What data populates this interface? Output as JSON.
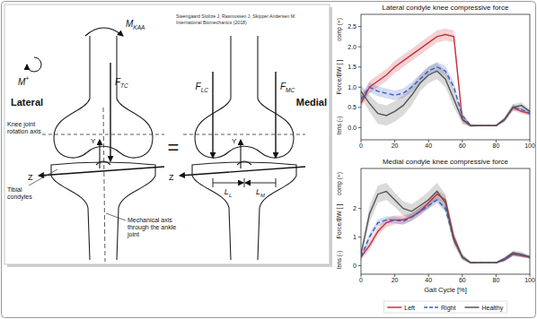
{
  "diagram": {
    "title_left": "Lateral",
    "title_right": "Medial",
    "equals": "=",
    "citation": [
      "Steengaard Stoltze J, Rasmussen J, Skipper Andersen M.",
      "International Biomechanics (2018)"
    ],
    "labels": {
      "moment": {
        "main": "M",
        "sub": "KAA"
      },
      "sign": {
        "main": "M",
        "sup": "+"
      },
      "ftc": {
        "main": "F",
        "sub": "TC"
      },
      "flc": {
        "main": "F",
        "sub": "LC"
      },
      "fmc": {
        "main": "F",
        "sub": "MC"
      },
      "ll": {
        "main": "L",
        "sub": "L"
      },
      "lm": {
        "main": "L",
        "sub": "M"
      },
      "y": "Y",
      "z": "Z",
      "rotation_axis": "Knee joint rotation axis",
      "condyles": "Tibial condyles",
      "mechanical_axis": "Mechanical axis through the ankle joint"
    }
  },
  "chart_data": [
    {
      "type": "line",
      "title": "Lateral condyle knee compressive force",
      "ylabel": "Force/BW [ ]",
      "annotations": [
        {
          "text": "comp (+)"
        },
        {
          "text": "tens (-)"
        }
      ],
      "x": [
        0,
        5,
        10,
        15,
        20,
        25,
        30,
        35,
        40,
        45,
        50,
        55,
        60,
        65,
        70,
        75,
        80,
        85,
        90,
        95,
        100
      ],
      "xlim": [
        0,
        100
      ],
      "xticks": [
        0,
        20,
        40,
        60,
        80,
        100
      ],
      "ylim": [
        -0.3,
        2.8
      ],
      "yticks": [
        {
          "value": 0,
          "label": "0.0"
        },
        {
          "value": 0.5,
          "label": "0.5"
        },
        {
          "value": 1,
          "label": "1.0"
        },
        {
          "value": 1.5,
          "label": "1.5"
        },
        {
          "value": 2,
          "label": "2.0"
        },
        {
          "value": 2.5,
          "label": "2.5"
        }
      ],
      "grid": false,
      "series": [
        {
          "color": "#c8303a",
          "line_style": "solid",
          "values": [
            0.6,
            1.0,
            1.15,
            1.3,
            1.5,
            1.65,
            1.8,
            1.95,
            2.1,
            2.25,
            2.3,
            2.25,
            0.2,
            0.05,
            0.05,
            0.05,
            0.05,
            0.2,
            0.5,
            0.4,
            0.35
          ],
          "sd": [
            0.1,
            0.15,
            0.15,
            0.15,
            0.15,
            0.15,
            0.15,
            0.15,
            0.15,
            0.15,
            0.15,
            0.15,
            0.1,
            0.03,
            0.02,
            0.02,
            0.02,
            0.05,
            0.08,
            0.06,
            0.05
          ]
        },
        {
          "color": "#3a5cc2",
          "line_style": "dashed",
          "values": [
            0.7,
            1.0,
            0.9,
            0.85,
            0.8,
            0.85,
            1.0,
            1.2,
            1.4,
            1.5,
            1.4,
            1.0,
            0.3,
            0.05,
            0.05,
            0.05,
            0.05,
            0.2,
            0.5,
            0.45,
            0.35
          ],
          "sd": [
            0.1,
            0.12,
            0.12,
            0.12,
            0.12,
            0.12,
            0.12,
            0.12,
            0.12,
            0.12,
            0.12,
            0.12,
            0.08,
            0.03,
            0.02,
            0.02,
            0.02,
            0.05,
            0.06,
            0.05,
            0.05
          ]
        },
        {
          "color": "#555555",
          "line_style": "solid",
          "values": [
            0.9,
            0.6,
            0.35,
            0.3,
            0.4,
            0.55,
            0.8,
            1.1,
            1.3,
            1.4,
            1.2,
            0.7,
            0.2,
            0.05,
            0.05,
            0.05,
            0.05,
            0.2,
            0.5,
            0.55,
            0.4
          ],
          "sd": [
            0.15,
            0.2,
            0.25,
            0.25,
            0.25,
            0.25,
            0.25,
            0.2,
            0.2,
            0.2,
            0.2,
            0.2,
            0.1,
            0.03,
            0.02,
            0.02,
            0.02,
            0.05,
            0.08,
            0.08,
            0.06
          ]
        }
      ]
    },
    {
      "type": "line",
      "title": "Medial condyle knee compressive force",
      "ylabel": "Force/BW [ ]",
      "xlabel": "Gait Cycle [%]",
      "annotations": [
        {
          "text": "comp (+)"
        },
        {
          "text": "tens (-)"
        }
      ],
      "x": [
        0,
        5,
        10,
        15,
        20,
        25,
        30,
        35,
        40,
        45,
        50,
        55,
        60,
        65,
        70,
        75,
        80,
        85,
        90,
        95,
        100
      ],
      "xlim": [
        0,
        100
      ],
      "xticks": [
        0,
        20,
        40,
        60,
        80,
        100
      ],
      "ylim": [
        -0.3,
        3.4
      ],
      "yticks": [
        0,
        1,
        2
      ],
      "grid": false,
      "legend": "bottom",
      "series": [
        {
          "name": "Left",
          "color": "#c8303a",
          "line_style": "solid",
          "values": [
            0.3,
            0.7,
            1.2,
            1.5,
            1.6,
            1.6,
            1.7,
            1.9,
            2.2,
            2.5,
            2.3,
            1.0,
            0.3,
            0.1,
            0.1,
            0.1,
            0.1,
            0.2,
            0.4,
            0.35,
            0.3
          ],
          "sd": [
            0.1,
            0.15,
            0.15,
            0.15,
            0.15,
            0.15,
            0.15,
            0.15,
            0.15,
            0.15,
            0.15,
            0.15,
            0.1,
            0.03,
            0.02,
            0.02,
            0.02,
            0.05,
            0.08,
            0.06,
            0.05
          ]
        },
        {
          "name": "Right",
          "color": "#3a5cc2",
          "line_style": "dashed",
          "values": [
            0.3,
            1.0,
            1.5,
            1.6,
            1.6,
            1.55,
            1.7,
            1.9,
            2.1,
            2.3,
            2.0,
            0.9,
            0.3,
            0.1,
            0.1,
            0.1,
            0.1,
            0.2,
            0.4,
            0.35,
            0.3
          ],
          "sd": [
            0.1,
            0.12,
            0.12,
            0.12,
            0.12,
            0.12,
            0.12,
            0.12,
            0.12,
            0.12,
            0.12,
            0.12,
            0.08,
            0.03,
            0.02,
            0.02,
            0.02,
            0.05,
            0.06,
            0.05,
            0.05
          ]
        },
        {
          "name": "Healthy",
          "color": "#555555",
          "line_style": "solid",
          "values": [
            0.4,
            1.8,
            2.5,
            2.6,
            2.3,
            2.0,
            1.9,
            2.1,
            2.3,
            2.6,
            2.2,
            0.9,
            0.3,
            0.1,
            0.1,
            0.1,
            0.1,
            0.25,
            0.45,
            0.4,
            0.3
          ],
          "sd": [
            0.1,
            0.3,
            0.3,
            0.3,
            0.25,
            0.25,
            0.25,
            0.25,
            0.3,
            0.3,
            0.3,
            0.2,
            0.1,
            0.03,
            0.02,
            0.02,
            0.02,
            0.05,
            0.08,
            0.08,
            0.06
          ]
        }
      ]
    }
  ]
}
